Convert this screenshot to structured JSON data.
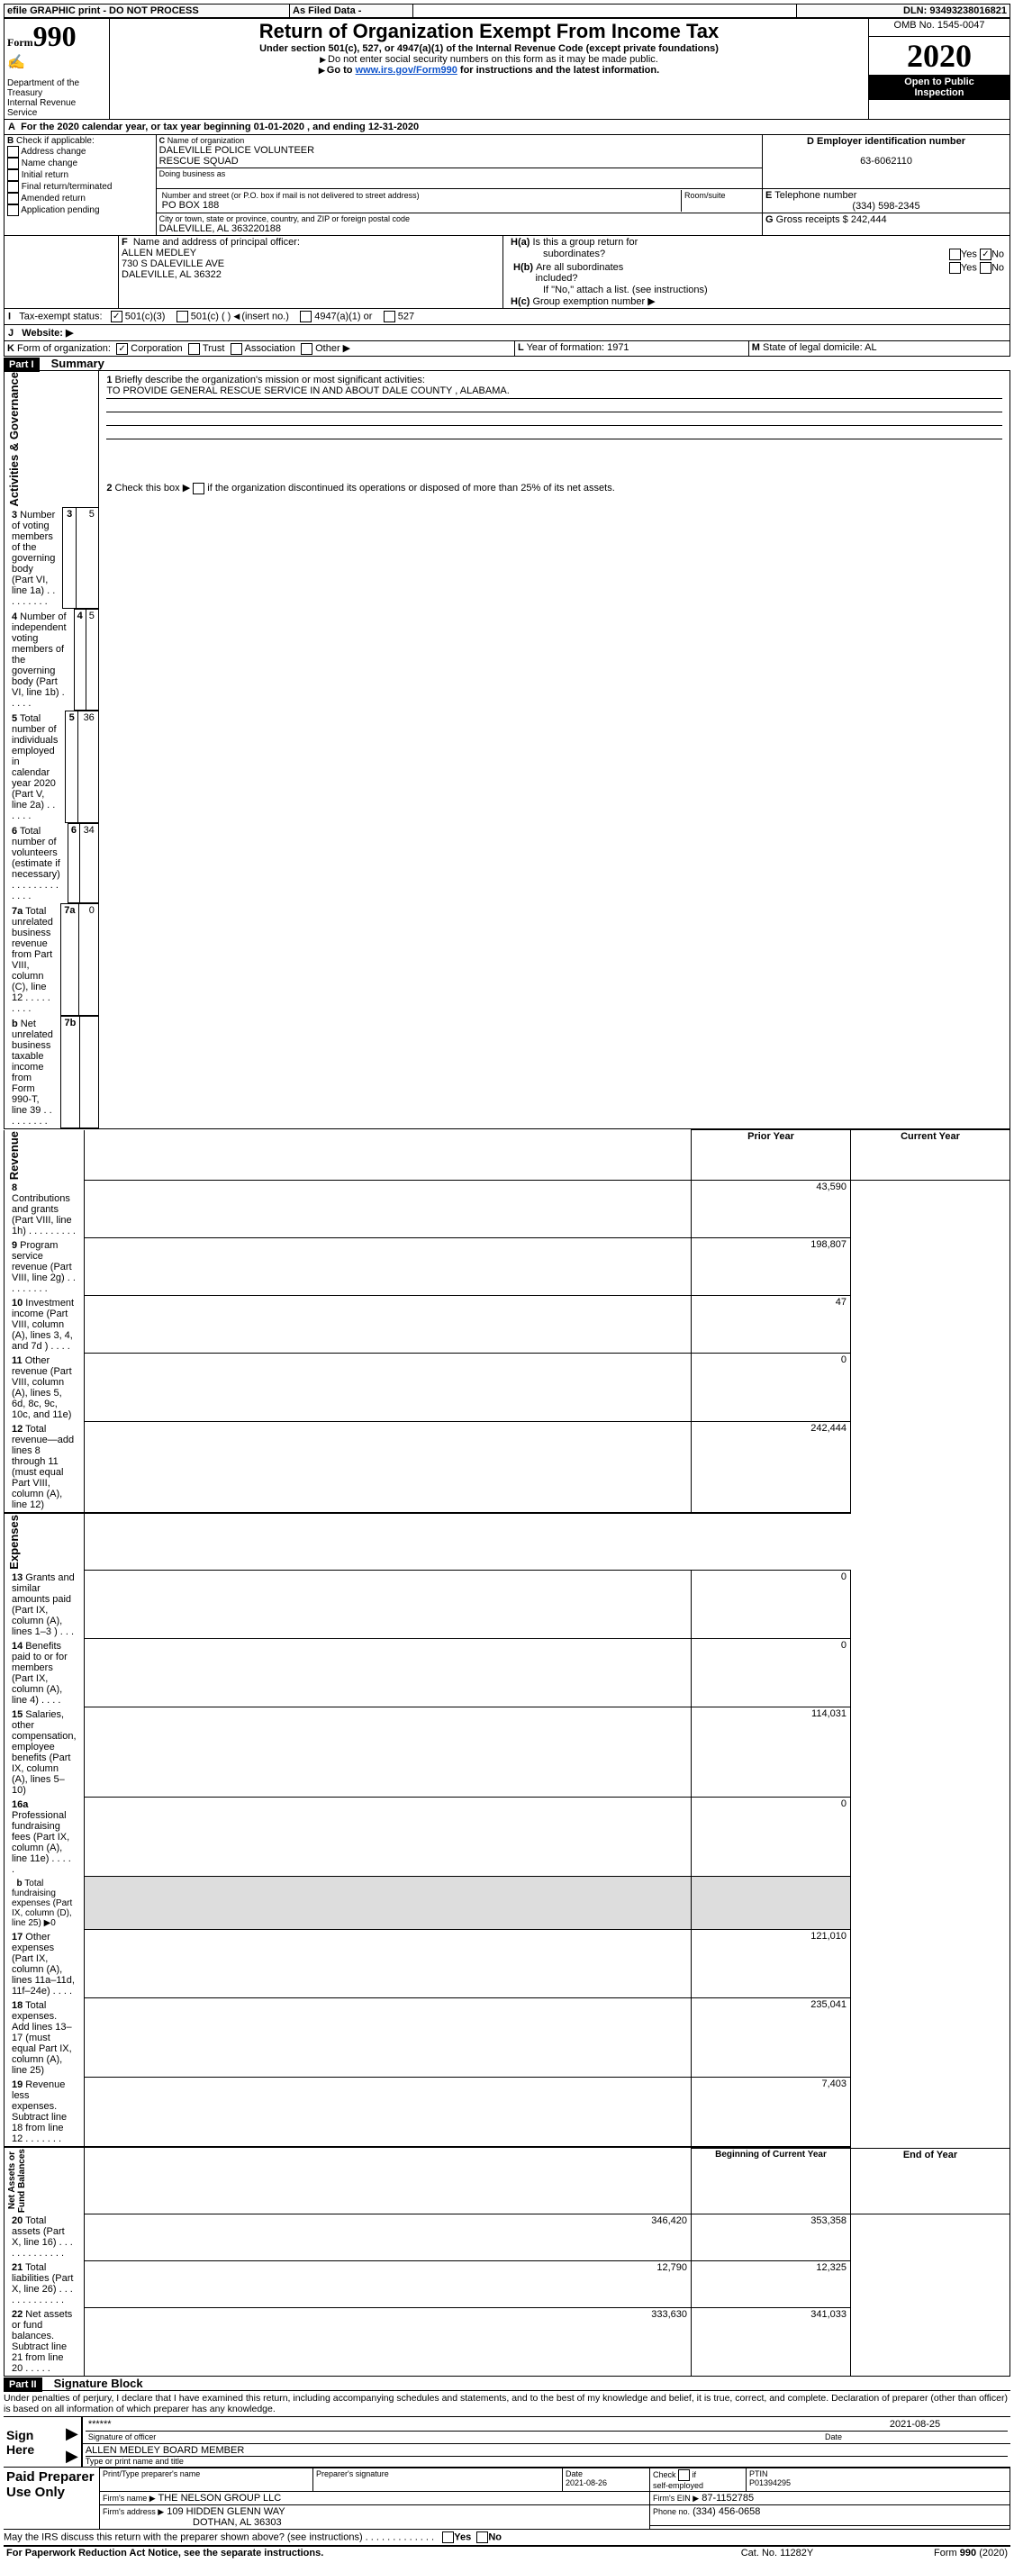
{
  "topbar": {
    "graphic": "efile GRAPHIC print - DO NOT PROCESS",
    "asfiled": "As Filed Data -",
    "dln_label": "DLN:",
    "dln": "93493238016821"
  },
  "header": {
    "form_small": "Form",
    "form_big": "990",
    "dept1": "Department of the",
    "dept2": "Treasury",
    "dept3": "Internal Revenue Service",
    "title": "Return of Organization Exempt From Income Tax",
    "sub1": "Under section 501(c), 527, or 4947(a)(1) of the Internal Revenue Code (except private foundations)",
    "sub2": "Do not enter social security numbers on this form as it may be made public.",
    "sub3_a": "Go to ",
    "sub3_link": "www.irs.gov/Form990",
    "sub3_b": " for instructions and the latest information.",
    "omb": "OMB No. 1545-0047",
    "year": "2020",
    "open1": "Open to Public",
    "open2": "Inspection"
  },
  "A": {
    "line": "For the 2020 calendar year, or tax year beginning 01-01-2020    , and ending 12-31-2020"
  },
  "B": {
    "title": "Check if applicable:",
    "opts": [
      "Address change",
      "Name change",
      "Initial return",
      "Final return/terminated",
      "Amended return",
      "Application pending"
    ]
  },
  "C": {
    "label": "Name of organization",
    "name1": "DALEVILLE POLICE VOLUNTEER",
    "name2": "RESCUE SQUAD",
    "dba_label": "Doing business as",
    "street_label": "Number and street (or P.O. box if mail is not delivered to street address)",
    "room_label": "Room/suite",
    "street": "PO BOX 188",
    "city_label": "City or town, state or province, country, and ZIP or foreign postal code",
    "city": "DALEVILLE, AL  363220188"
  },
  "D": {
    "label": "Employer identification number",
    "val": "63-6062110"
  },
  "E": {
    "label": "Telephone number",
    "val": "(334) 598-2345"
  },
  "G": {
    "label": "Gross receipts $",
    "val": "242,444"
  },
  "F": {
    "label": "Name and address of principal officer:",
    "l1": "ALLEN MEDLEY",
    "l2": "730 S DALEVILLE AVE",
    "l3": "DALEVILLE, AL  36322"
  },
  "H": {
    "a1": "Is this a group return for",
    "a2": "subordinates?",
    "b1": "Are all subordinates",
    "b2": "included?",
    "note": "If \"No,\" attach a list. (see instructions)",
    "c": "Group exemption number ▶"
  },
  "I": {
    "label": "Tax-exempt status:",
    "opts": [
      "501(c)(3)",
      "501(c) (   ) ",
      "(insert no.)",
      "4947(a)(1) or",
      "527"
    ]
  },
  "J": {
    "label": "Website: ▶"
  },
  "K": {
    "label": "Form of organization:",
    "opts": [
      "Corporation",
      "Trust",
      "Association",
      "Other ▶"
    ]
  },
  "L": {
    "label": "Year of formation:",
    "val": "1971"
  },
  "M": {
    "label": "State of legal domicile:",
    "val": "AL"
  },
  "partI": "Part I",
  "summary": "Summary",
  "mission_label": "Briefly describe the organization's mission or most significant activities:",
  "mission": "TO PROVIDE GENERAL RESCUE SERVICE IN AND ABOUT DALE COUNTY , ALABAMA.",
  "line2": "Check this box ▶     if the organization discontinued its operations or disposed of more than 25% of its net assets.",
  "gov_rows": [
    {
      "n": "3",
      "t": "Number of voting members of the governing body (Part VI, line 1a)   .    .    .    .    .    .    .    .    .",
      "k": "3",
      "v": "5"
    },
    {
      "n": "4",
      "t": "Number of independent voting members of the governing body (Part VI, line 1b)    .    .    .    .    .",
      "k": "4",
      "v": "5"
    },
    {
      "n": "5",
      "t": "Total number of individuals employed in calendar year 2020 (Part V, line 2a)    .    .    .    .    .    .",
      "k": "5",
      "v": "36"
    },
    {
      "n": "6",
      "t": "Total number of volunteers (estimate if necessary)   .    .    .    .    .    .    .    .    .    .    .    .    .",
      "k": "6",
      "v": "34"
    },
    {
      "n": "7a",
      "t": "Total unrelated business revenue from Part VIII, column (C), line 12   .    .    .    .    .    .    .    .    .",
      "k": "7a",
      "v": "0"
    },
    {
      "n": "b",
      "t": "Net unrelated business taxable income from Form 990-T, line 39    .    .    .    .    .    .    .    .    .",
      "k": "7b",
      "v": ""
    }
  ],
  "col_prior": "Prior Year",
  "col_current": "Current Year",
  "rev_rows": [
    {
      "n": "8",
      "t": "Contributions and grants (Part VIII, line 1h)    .    .    .    .    .    .    .    .    .",
      "p": "",
      "c": "43,590"
    },
    {
      "n": "9",
      "t": "Program service revenue (Part VIII, line 2g)    .    .    .    .    .    .    .    .    .",
      "p": "",
      "c": "198,807"
    },
    {
      "n": "10",
      "t": "Investment income (Part VIII, column (A), lines 3, 4, and 7d )    .    .    .    .",
      "p": "",
      "c": "47"
    },
    {
      "n": "11",
      "t": "Other revenue (Part VIII, column (A), lines 5, 6d, 8c, 9c, 10c, and 11e)",
      "p": "",
      "c": "0"
    },
    {
      "n": "12",
      "t": "Total revenue—add lines 8 through 11 (must equal Part VIII, column (A), line 12)",
      "p": "",
      "c": "242,444"
    }
  ],
  "exp_rows": [
    {
      "n": "13",
      "t": "Grants and similar amounts paid (Part IX, column (A), lines 1–3 )    .    .    .",
      "p": "",
      "c": "0"
    },
    {
      "n": "14",
      "t": "Benefits paid to or for members (Part IX, column (A), line 4)    .    .    .    .",
      "p": "",
      "c": "0"
    },
    {
      "n": "15",
      "t": "Salaries, other compensation, employee benefits (Part IX, column (A), lines 5–10)",
      "p": "",
      "c": "114,031"
    },
    {
      "n": "16a",
      "t": "Professional fundraising fees (Part IX, column (A), line 11e)    .    .    .    .    .",
      "p": "",
      "c": "0"
    },
    {
      "n": "b",
      "t": "Total fundraising expenses (Part IX, column (D), line 25) ▶0",
      "p": "-",
      "c": "-"
    },
    {
      "n": "17",
      "t": "Other expenses (Part IX, column (A), lines 11a–11d, 11f–24e)    .    .    .    .",
      "p": "",
      "c": "121,010"
    },
    {
      "n": "18",
      "t": "Total expenses. Add lines 13–17 (must equal Part IX, column (A), line 25)",
      "p": "",
      "c": "235,041"
    },
    {
      "n": "19",
      "t": "Revenue less expenses. Subtract line 18 from line 12  .    .    .    .    .    .    .",
      "p": "",
      "c": "7,403"
    }
  ],
  "col_begin": "Beginning of Current Year",
  "col_end": "End of Year",
  "na_rows": [
    {
      "n": "20",
      "t": "Total assets (Part X, line 16)   .    .    .    .    .    .    .    .    .    .    .    .    .",
      "p": "346,420",
      "c": "353,358"
    },
    {
      "n": "21",
      "t": "Total liabilities (Part X, line 26)   .    .    .    .    .    .    .    .    .    .    .    .    .",
      "p": "12,790",
      "c": "12,325"
    },
    {
      "n": "22",
      "t": "Net assets or fund balances. Subtract line 21 from line 20  .    .    .    .    .",
      "p": "333,630",
      "c": "341,033"
    }
  ],
  "sides": {
    "gov": "Activities & Governance",
    "rev": "Revenue",
    "exp": "Expenses",
    "na": "Net Assets or\nFund Balances"
  },
  "partII": "Part II",
  "sigblock": "Signature Block",
  "penalty": "Under penalties of perjury, I declare that I have examined this return, including accompanying schedules and statements, and to the best of my knowledge and belief, it is true, correct, and complete. Declaration of preparer (other than officer) is based on all information of which preparer has any knowledge.",
  "sign": {
    "here": "Sign Here",
    "stars": "******",
    "sig_label": "Signature of officer",
    "date": "2021-08-25",
    "date_label": "Date",
    "name": "ALLEN MEDLEY  BOARD MEMBER",
    "name_label": "Type or print name and title"
  },
  "paid": {
    "title": "Paid Preparer Use Only",
    "h1": "Print/Type preparer's name",
    "h2": "Preparer's signature",
    "h3": "Date",
    "h3v": "2021-08-26",
    "h4a": "Check",
    "h4b": "if",
    "h4c": "self-employed",
    "h5": "PTIN",
    "h5v": "P01394295",
    "firm_name_l": "Firm's name    ▶",
    "firm_name": "THE NELSON GROUP LLC",
    "firm_ein_l": "Firm's EIN ▶",
    "firm_ein": "87-1152785",
    "firm_addr_l": "Firm's address ▶",
    "firm_addr1": "109 HIDDEN GLENN WAY",
    "firm_addr2": "DOTHAN, AL  36303",
    "phone_l": "Phone no.",
    "phone": "(334) 456-0658"
  },
  "footer": {
    "discuss": "May the IRS discuss this return with the preparer shown above? (see instructions)    .    .    .    .    .    .    .    .    .    .    .    .    .",
    "paperwork": "For Paperwork Reduction Act Notice, see the separate instructions.",
    "cat": "Cat. No. 11282Y",
    "form": "Form 990 (2020)"
  }
}
